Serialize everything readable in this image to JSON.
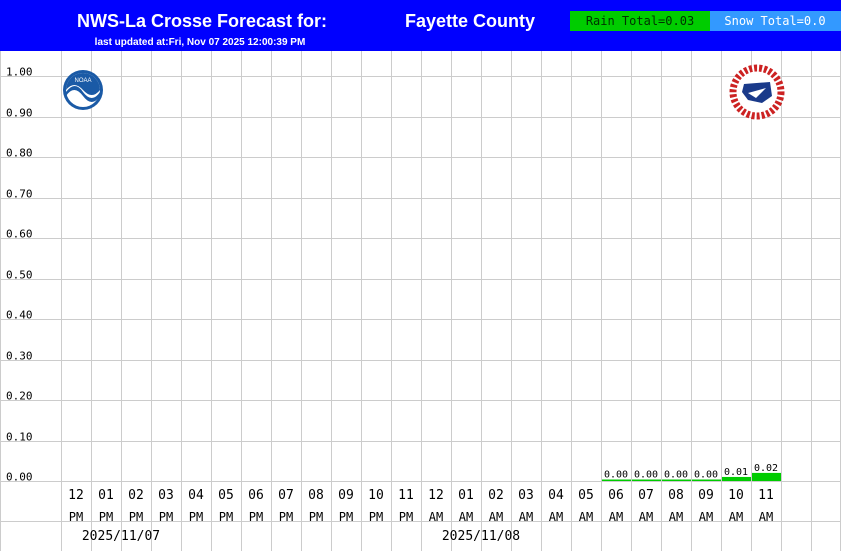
{
  "header": {
    "title": "NWS-La Crosse Forecast for:",
    "location": "Fayette County",
    "updated": "last updated at:Fri, Nov 07 2025 12:00:39 PM",
    "rain_total": "Rain Total=0.03",
    "snow_total": "Snow Total=0.0"
  },
  "logos": {
    "left": "noaa-logo",
    "left_text": "NOAA",
    "right": "nws-logo",
    "right_text": "NATIONAL WEATHER SERVICE"
  },
  "colors": {
    "header_bg": "#0000ff",
    "rain_box": "#00cc00",
    "snow_box": "#3399ff",
    "bar": "#00cc00",
    "grid": "#cccccc"
  },
  "chart_data": {
    "type": "bar",
    "ylim": [
      0,
      1.05
    ],
    "yticks": [
      "0.00",
      "0.10",
      "0.20",
      "0.30",
      "0.40",
      "0.50",
      "0.60",
      "0.70",
      "0.80",
      "0.90",
      "1.00"
    ],
    "categories": [
      {
        "hour": "12",
        "ampm": "PM"
      },
      {
        "hour": "01",
        "ampm": "PM"
      },
      {
        "hour": "02",
        "ampm": "PM"
      },
      {
        "hour": "03",
        "ampm": "PM"
      },
      {
        "hour": "04",
        "ampm": "PM"
      },
      {
        "hour": "05",
        "ampm": "PM"
      },
      {
        "hour": "06",
        "ampm": "PM"
      },
      {
        "hour": "07",
        "ampm": "PM"
      },
      {
        "hour": "08",
        "ampm": "PM"
      },
      {
        "hour": "09",
        "ampm": "PM"
      },
      {
        "hour": "10",
        "ampm": "PM"
      },
      {
        "hour": "11",
        "ampm": "PM"
      },
      {
        "hour": "12",
        "ampm": "AM"
      },
      {
        "hour": "01",
        "ampm": "AM"
      },
      {
        "hour": "02",
        "ampm": "AM"
      },
      {
        "hour": "03",
        "ampm": "AM"
      },
      {
        "hour": "04",
        "ampm": "AM"
      },
      {
        "hour": "05",
        "ampm": "AM"
      },
      {
        "hour": "06",
        "ampm": "AM"
      },
      {
        "hour": "07",
        "ampm": "AM"
      },
      {
        "hour": "08",
        "ampm": "AM"
      },
      {
        "hour": "09",
        "ampm": "AM"
      },
      {
        "hour": "10",
        "ampm": "AM"
      },
      {
        "hour": "11",
        "ampm": "AM"
      }
    ],
    "values": [
      null,
      null,
      null,
      null,
      null,
      null,
      null,
      null,
      null,
      null,
      null,
      null,
      null,
      null,
      null,
      null,
      null,
      null,
      0.0,
      0.0,
      0.0,
      0.0,
      0.01,
      0.02
    ],
    "labels": [
      "",
      "",
      "",
      "",
      "",
      "",
      "",
      "",
      "",
      "",
      "",
      "",
      "",
      "",
      "",
      "",
      "",
      "",
      "0.00",
      "0.00",
      "0.00",
      "0.00",
      "0.01",
      "0.02"
    ],
    "dates": [
      {
        "text": "2025/11/07",
        "start": 0,
        "span": 4
      },
      {
        "text": "2025/11/08",
        "start": 12,
        "span": 4
      }
    ],
    "grid": true
  }
}
